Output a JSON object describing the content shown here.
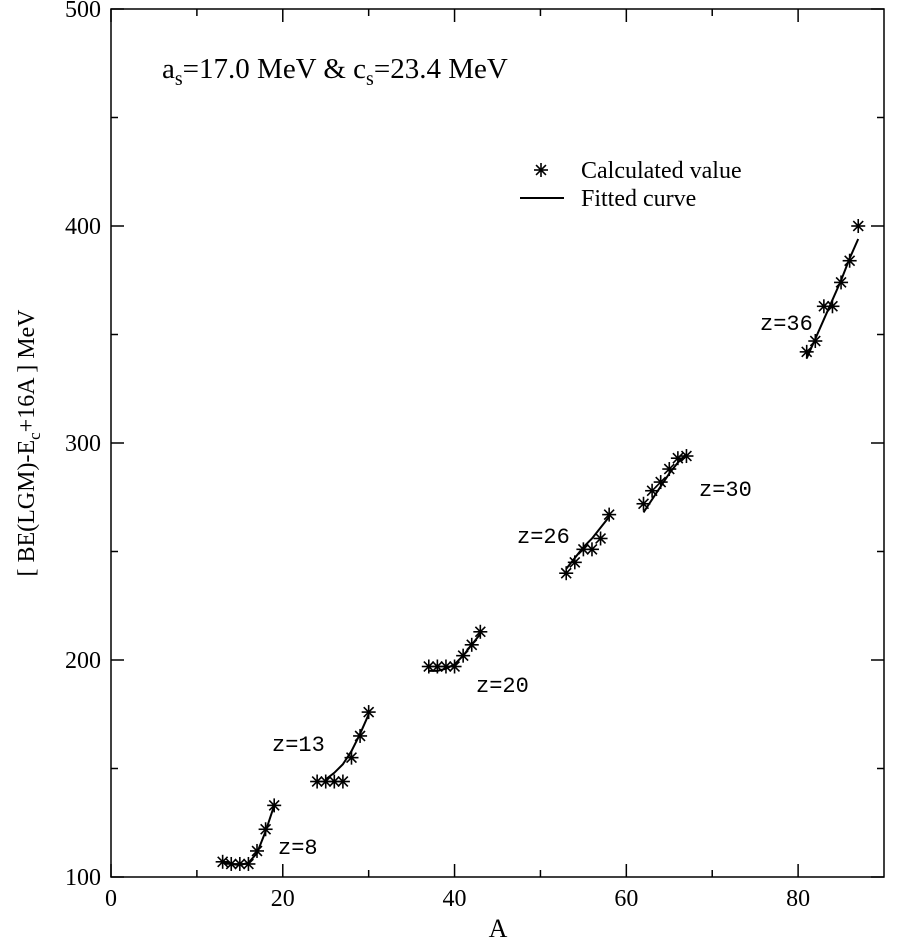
{
  "chart_data": {
    "type": "scatter",
    "title": "",
    "xlabel": "A",
    "ylabel_parts": [
      "[ BE(LGM)-E",
      "c",
      "+16A ] MeV"
    ],
    "xlim": [
      0,
      90
    ],
    "ylim": [
      100,
      500
    ],
    "x_ticks": [
      0,
      20,
      40,
      60,
      80
    ],
    "y_ticks": [
      100,
      200,
      300,
      400,
      500
    ],
    "x_minor_ticks": [
      10,
      30,
      50,
      70
    ],
    "y_minor_ticks": [
      150,
      250,
      350,
      450
    ],
    "grid": false,
    "annotation_parts": [
      "a",
      "s",
      "=17.0 MeV & c",
      "s",
      "=23.4 MeV"
    ],
    "legend": {
      "position": "top-right",
      "entries": [
        {
          "label": "Calculated value",
          "marker": "asterisk"
        },
        {
          "label": "Fitted curve",
          "marker": "line"
        }
      ]
    },
    "groups": [
      {
        "label": "z=8",
        "points": [
          [
            13,
            107
          ],
          [
            14,
            106
          ],
          [
            15,
            106
          ],
          [
            16,
            106
          ],
          [
            17,
            112
          ],
          [
            18,
            122
          ],
          [
            19,
            133
          ]
        ],
        "fit": [
          [
            13,
            107
          ],
          [
            14,
            106
          ],
          [
            15,
            105.5
          ],
          [
            16,
            106.5
          ],
          [
            17,
            111
          ],
          [
            18,
            121
          ],
          [
            19,
            133
          ]
        ]
      },
      {
        "label": "z=13",
        "points": [
          [
            24,
            144
          ],
          [
            25,
            144
          ],
          [
            26,
            144
          ],
          [
            27,
            144
          ],
          [
            28,
            155
          ],
          [
            29,
            165
          ],
          [
            30,
            176
          ]
        ],
        "fit": [
          [
            25,
            145
          ],
          [
            26,
            148
          ],
          [
            27,
            152
          ],
          [
            28,
            158
          ],
          [
            29,
            166
          ],
          [
            30,
            175
          ]
        ]
      },
      {
        "label": "z=20",
        "points": [
          [
            37,
            197
          ],
          [
            38,
            197
          ],
          [
            39,
            197
          ],
          [
            40,
            197
          ],
          [
            41,
            202
          ],
          [
            42,
            207
          ],
          [
            43,
            213
          ]
        ],
        "fit": [
          [
            37,
            195
          ],
          [
            38,
            195
          ],
          [
            39,
            196
          ],
          [
            40,
            198
          ],
          [
            41,
            202
          ],
          [
            42,
            207
          ],
          [
            43,
            212
          ]
        ]
      },
      {
        "label": "z=26",
        "points": [
          [
            53,
            240
          ],
          [
            54,
            245
          ],
          [
            55,
            251
          ],
          [
            56,
            251
          ],
          [
            57,
            256
          ],
          [
            58,
            267
          ]
        ],
        "fit": [
          [
            53,
            242
          ],
          [
            54,
            247
          ],
          [
            55,
            252
          ],
          [
            56,
            256
          ],
          [
            57,
            261
          ],
          [
            58,
            266
          ]
        ]
      },
      {
        "label": "z=30",
        "points": [
          [
            62,
            272
          ],
          [
            63,
            278
          ],
          [
            64,
            282
          ],
          [
            65,
            288
          ],
          [
            66,
            293
          ],
          [
            67,
            294
          ]
        ],
        "fit": [
          [
            62,
            268
          ],
          [
            63,
            274
          ],
          [
            64,
            280
          ],
          [
            65,
            286
          ],
          [
            66,
            291
          ],
          [
            67,
            295
          ]
        ]
      },
      {
        "label": "z=36",
        "points": [
          [
            81,
            342
          ],
          [
            82,
            347
          ],
          [
            83,
            363
          ],
          [
            84,
            363
          ],
          [
            85,
            374
          ],
          [
            86,
            384
          ],
          [
            87,
            400
          ]
        ],
        "fit": [
          [
            81,
            339
          ],
          [
            82,
            348
          ],
          [
            83,
            357
          ],
          [
            84,
            366
          ],
          [
            85,
            375
          ],
          [
            86,
            385
          ],
          [
            87,
            394
          ]
        ]
      }
    ]
  }
}
